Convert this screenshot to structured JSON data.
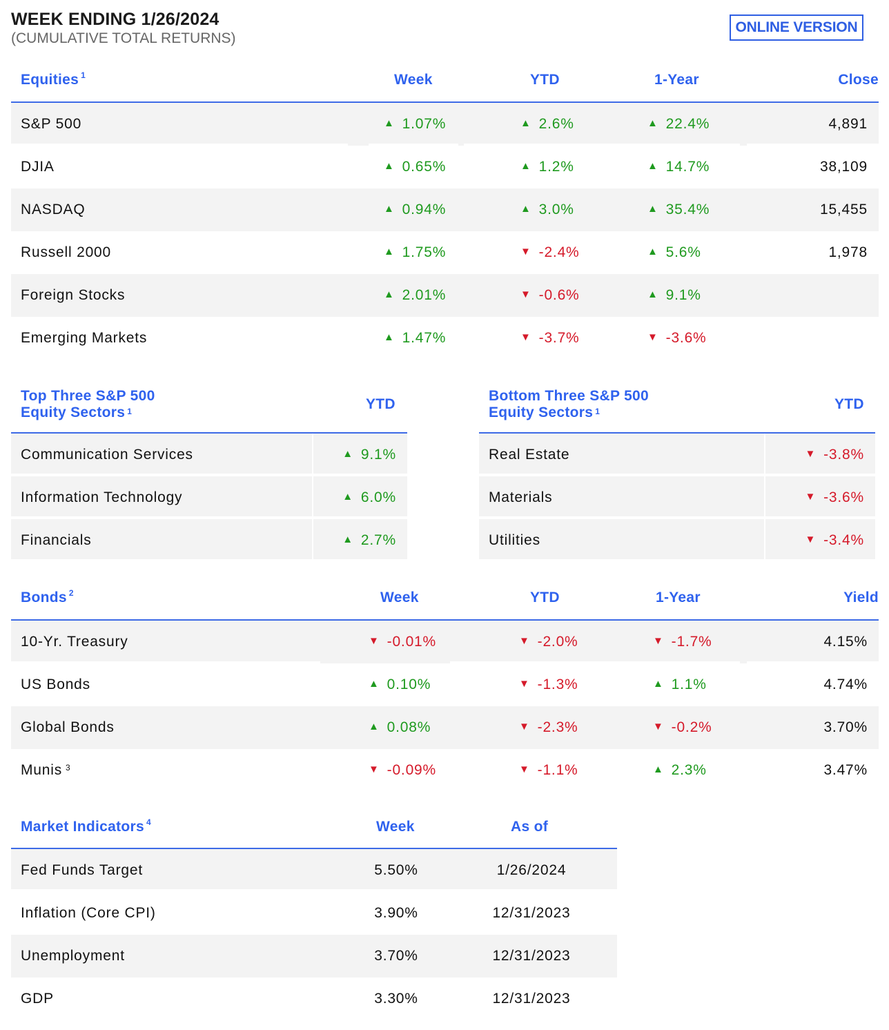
{
  "header": {
    "title": "WEEK ENDING 1/26/2024",
    "subtitle": "(CUMULATIVE TOTAL RETURNS)",
    "online_label": "ONLINE VERSION"
  },
  "equities": {
    "title": "Equities",
    "note": "1",
    "cols": [
      "Week",
      "YTD",
      "1-Year",
      "Close"
    ],
    "rows": [
      {
        "name": "S&P 500",
        "week": {
          "v": "1.07%",
          "d": "up"
        },
        "ytd": {
          "v": "2.6%",
          "d": "up"
        },
        "year": {
          "v": "22.4%",
          "d": "up"
        },
        "close": "4,891"
      },
      {
        "name": "DJIA",
        "week": {
          "v": "0.65%",
          "d": "up"
        },
        "ytd": {
          "v": "1.2%",
          "d": "up"
        },
        "year": {
          "v": "14.7%",
          "d": "up"
        },
        "close": "38,109"
      },
      {
        "name": "NASDAQ",
        "week": {
          "v": "0.94%",
          "d": "up"
        },
        "ytd": {
          "v": "3.0%",
          "d": "up"
        },
        "year": {
          "v": "35.4%",
          "d": "up"
        },
        "close": "15,455"
      },
      {
        "name": "Russell 2000",
        "week": {
          "v": "1.75%",
          "d": "up"
        },
        "ytd": {
          "v": "-2.4%",
          "d": "down"
        },
        "year": {
          "v": "5.6%",
          "d": "up"
        },
        "close": "1,978"
      },
      {
        "name": "Foreign Stocks",
        "week": {
          "v": "2.01%",
          "d": "up"
        },
        "ytd": {
          "v": "-0.6%",
          "d": "down"
        },
        "year": {
          "v": "9.1%",
          "d": "up"
        },
        "close": ""
      },
      {
        "name": "Emerging Markets",
        "week": {
          "v": "1.47%",
          "d": "up"
        },
        "ytd": {
          "v": "-3.7%",
          "d": "down"
        },
        "year": {
          "v": "-3.6%",
          "d": "down"
        },
        "close": ""
      }
    ]
  },
  "top_sectors": {
    "title_line1": "Top Three S&P 500",
    "title_line2": "Equity Sectors",
    "note": "1",
    "col": "YTD",
    "rows": [
      {
        "name": "Communication Services",
        "ytd": {
          "v": "9.1%",
          "d": "up"
        }
      },
      {
        "name": "Information Technology",
        "ytd": {
          "v": "6.0%",
          "d": "up"
        }
      },
      {
        "name": "Financials",
        "ytd": {
          "v": "2.7%",
          "d": "up"
        }
      }
    ]
  },
  "bottom_sectors": {
    "title_line1": "Bottom Three S&P 500",
    "title_line2": "Equity Sectors",
    "note": "1",
    "col": "YTD",
    "rows": [
      {
        "name": "Real Estate",
        "ytd": {
          "v": "-3.8%",
          "d": "down"
        }
      },
      {
        "name": "Materials",
        "ytd": {
          "v": "-3.6%",
          "d": "down"
        }
      },
      {
        "name": "Utilities",
        "ytd": {
          "v": "-3.4%",
          "d": "down"
        }
      }
    ]
  },
  "bonds": {
    "title": "Bonds",
    "note": "2",
    "cols": [
      "Week",
      "YTD",
      "1-Year",
      "Yield"
    ],
    "rows": [
      {
        "name": "10-Yr. Treasury",
        "note": "",
        "week": {
          "v": "-0.01%",
          "d": "down"
        },
        "ytd": {
          "v": "-2.0%",
          "d": "down"
        },
        "year": {
          "v": "-1.7%",
          "d": "down"
        },
        "yield": "4.15%"
      },
      {
        "name": "US Bonds",
        "note": "",
        "week": {
          "v": "0.10%",
          "d": "up"
        },
        "ytd": {
          "v": "-1.3%",
          "d": "down"
        },
        "year": {
          "v": "1.1%",
          "d": "up"
        },
        "yield": "4.74%"
      },
      {
        "name": "Global Bonds",
        "note": "",
        "week": {
          "v": "0.08%",
          "d": "up"
        },
        "ytd": {
          "v": "-2.3%",
          "d": "down"
        },
        "year": {
          "v": "-0.2%",
          "d": "down"
        },
        "yield": "3.70%"
      },
      {
        "name": "Munis",
        "note": "3",
        "week": {
          "v": "-0.09%",
          "d": "down"
        },
        "ytd": {
          "v": "-1.1%",
          "d": "down"
        },
        "year": {
          "v": "2.3%",
          "d": "up"
        },
        "yield": "3.47%"
      }
    ]
  },
  "indicators": {
    "title": "Market Indicators",
    "note": "4",
    "cols": [
      "Week",
      "As of"
    ],
    "rows": [
      {
        "name": "Fed Funds Target",
        "week": "5.50%",
        "asof": "1/26/2024"
      },
      {
        "name": "Inflation (Core CPI)",
        "week": "3.90%",
        "asof": "12/31/2023"
      },
      {
        "name": "Unemployment",
        "week": "3.70%",
        "asof": "12/31/2023"
      },
      {
        "name": "GDP",
        "week": "3.30%",
        "asof": "12/31/2023"
      }
    ]
  },
  "icons": {
    "up": "triangle-up-icon",
    "down": "triangle-down-icon"
  },
  "colors": {
    "accent": "#2f62ee",
    "positive": "#1f9a1f",
    "negative": "#d51a2a",
    "row_shade": "#f3f3f3"
  }
}
